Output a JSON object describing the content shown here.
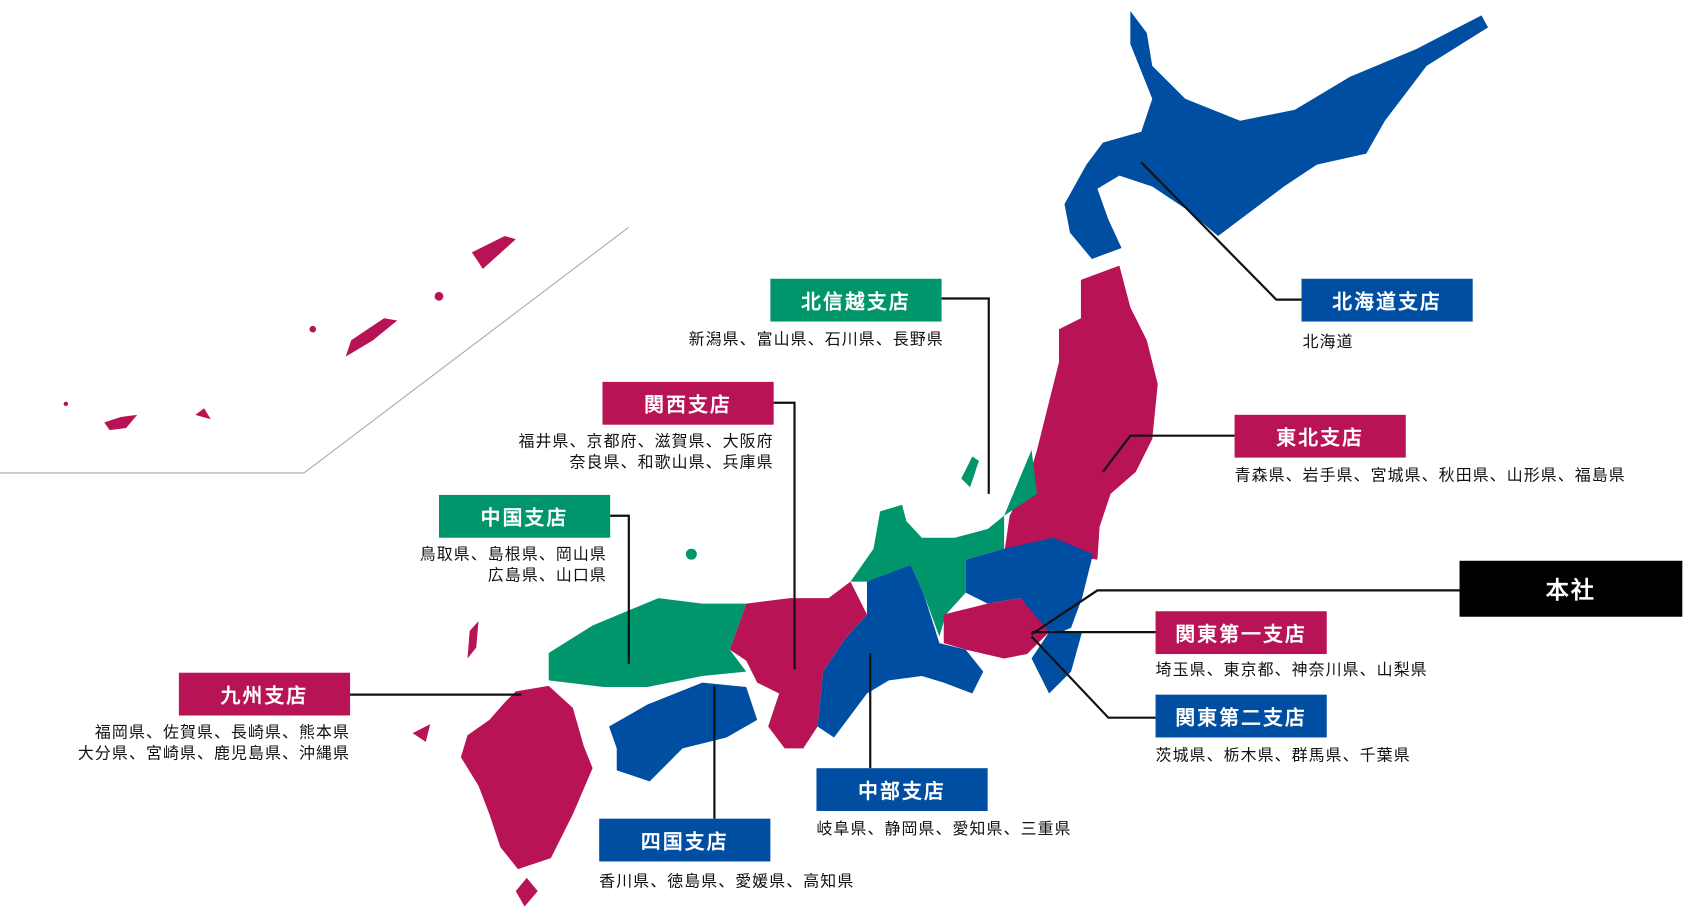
{
  "colors": {
    "blue": "#004ea2",
    "magenta": "#b81355",
    "green": "#00956b",
    "hq": "#000000"
  },
  "branches": {
    "hokkaido": {
      "name": "北海道支店",
      "prefs": [
        "北海道"
      ],
      "color": "blue"
    },
    "tohoku": {
      "name": "東北支店",
      "prefs": [
        "青森県、岩手県、宮城県、秋田県、山形県、福島県"
      ],
      "color": "magenta"
    },
    "hokushinetsu": {
      "name": "北信越支店",
      "prefs": [
        "新潟県、富山県、石川県、長野県"
      ],
      "color": "green"
    },
    "kansai": {
      "name": "関西支店",
      "prefs": [
        "福井県、京都府、滋賀県、大阪府",
        "奈良県、和歌山県、兵庫県"
      ],
      "color": "magenta"
    },
    "chugoku": {
      "name": "中国支店",
      "prefs": [
        "鳥取県、島根県、岡山県",
        "広島県、山口県"
      ],
      "color": "green"
    },
    "kyushu": {
      "name": "九州支店",
      "prefs": [
        "福岡県、佐賀県、長崎県、熊本県",
        "大分県、宮崎県、鹿児島県、沖縄県"
      ],
      "color": "magenta"
    },
    "shikoku": {
      "name": "四国支店",
      "prefs": [
        "香川県、徳島県、愛媛県、高知県"
      ],
      "color": "blue"
    },
    "chubu": {
      "name": "中部支店",
      "prefs": [
        "岐阜県、静岡県、愛知県、三重県"
      ],
      "color": "blue"
    },
    "kanto1": {
      "name": "関東第一支店",
      "prefs": [
        "埼玉県、東京都、神奈川県、山梨県"
      ],
      "color": "magenta"
    },
    "kanto2": {
      "name": "関東第二支店",
      "prefs": [
        "茨城県、栃木県、群馬県、千葉県"
      ],
      "color": "blue"
    }
  },
  "hq": {
    "name": "本社"
  }
}
